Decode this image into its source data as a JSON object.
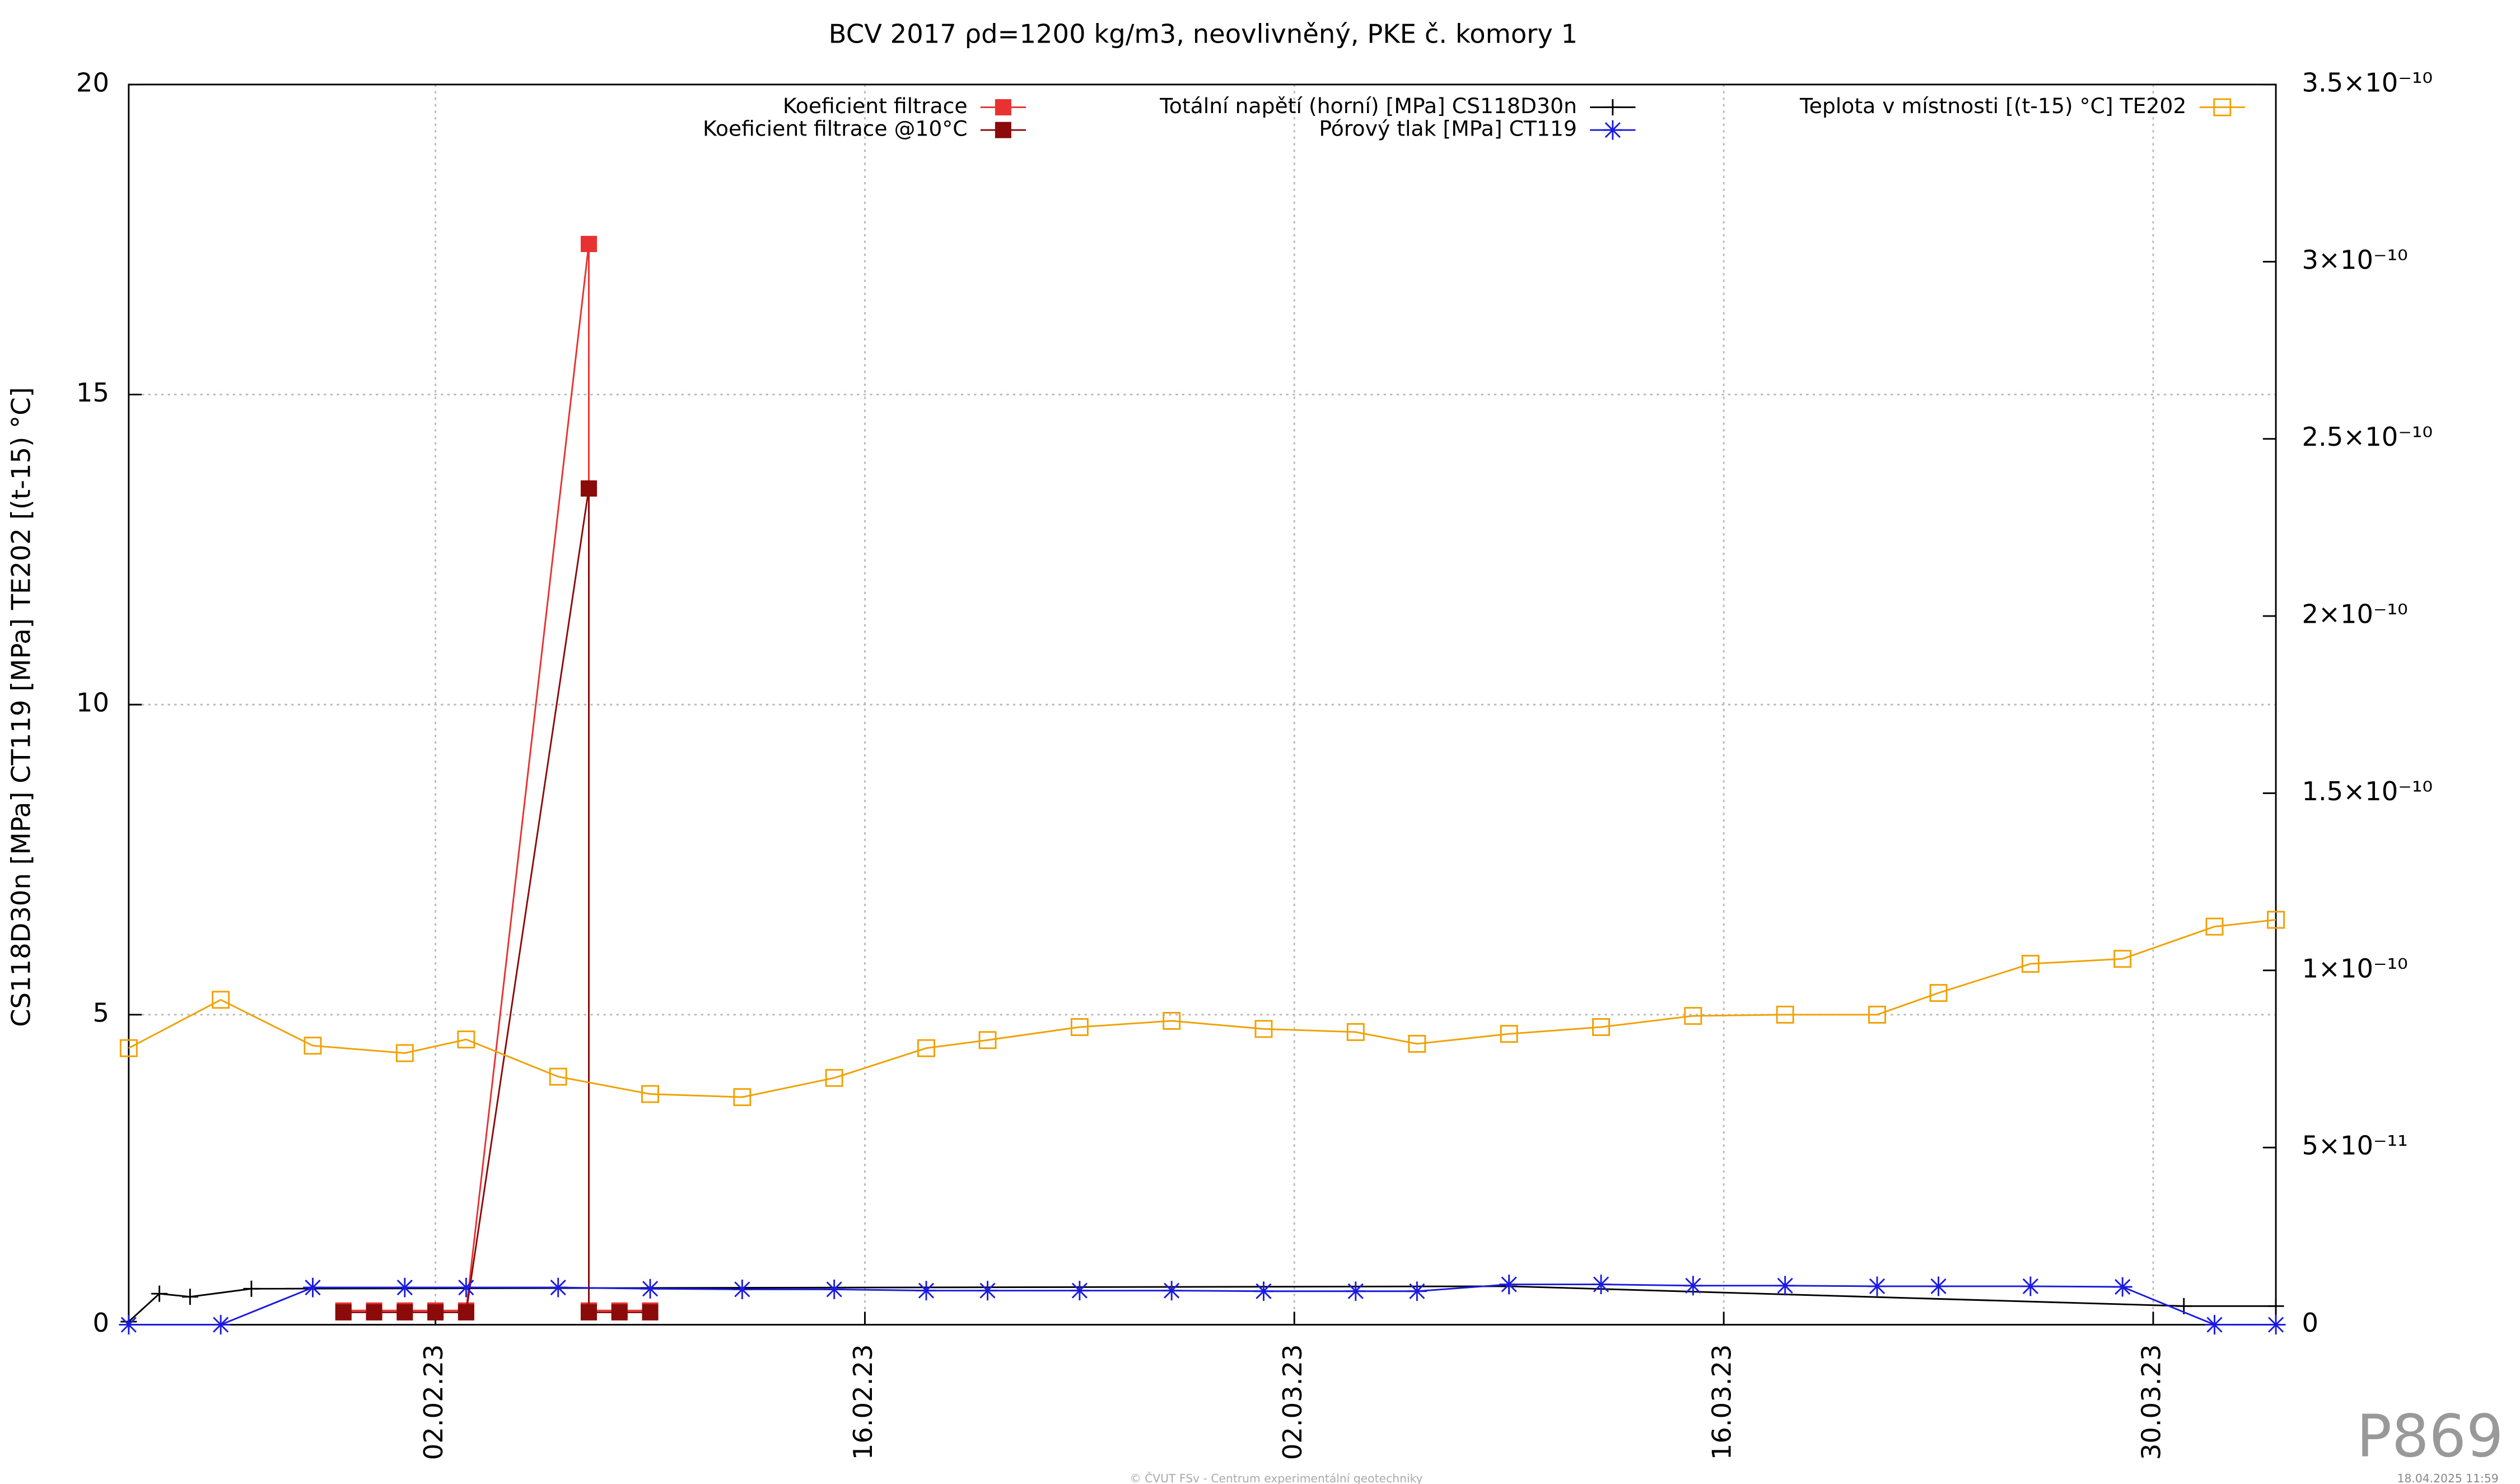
{
  "chart_data": {
    "type": "line",
    "title": "BCV 2017 ρd=1200 kg/m3, neovlivněný, PKE č. komory 1",
    "ylabel": "CS118D30n [MPa] CT119 [MPa] TE202 [(t-15) °C]",
    "xlim": [
      "2023-01-23",
      "2023-04-03"
    ],
    "xticks": [
      {
        "value": "2023-02-02",
        "label": "02.02.23"
      },
      {
        "value": "2023-02-16",
        "label": "16.02.23"
      },
      {
        "value": "2023-03-02",
        "label": "02.03.23"
      },
      {
        "value": "2023-03-16",
        "label": "16.03.23"
      },
      {
        "value": "2023-03-30",
        "label": "30.03.23"
      }
    ],
    "ylim": [
      0,
      20
    ],
    "yticks": [
      0,
      5,
      10,
      15,
      20
    ],
    "y2lim": [
      0,
      3.5e-10
    ],
    "y2ticks": [
      0,
      {
        "value": 5e-11,
        "label": "5×10⁻¹¹"
      },
      {
        "value": 1e-10,
        "label": "1×10⁻¹⁰"
      },
      {
        "value": 1.5e-10,
        "label": "1.5×10⁻¹⁰"
      },
      {
        "value": 2e-10,
        "label": "2×10⁻¹⁰"
      },
      {
        "value": 2.5e-10,
        "label": "2.5×10⁻¹⁰"
      },
      {
        "value": 3e-10,
        "label": "3×10⁻¹⁰"
      },
      {
        "value": 3.5e-10,
        "label": "3.5×10⁻¹⁰"
      }
    ],
    "grid": true,
    "series": [
      {
        "name": "Koeficient filtrace",
        "color": "#e83232",
        "axis": "y2",
        "marker": "filled-square",
        "x": [
          "2023-01-30",
          "2023-01-31",
          "2023-02-01",
          "2023-02-02",
          "2023-02-03",
          "2023-02-07",
          "2023-02-07",
          "2023-02-08",
          "2023-02-09"
        ],
        "values": [
          4e-12,
          4e-12,
          4e-12,
          4e-12,
          4e-12,
          3.05e-10,
          4e-12,
          4e-12,
          4e-12
        ]
      },
      {
        "name": "Koeficient filtrace @10°C",
        "color": "#8b0a0a",
        "axis": "y2",
        "marker": "filled-square",
        "x": [
          "2023-01-30",
          "2023-01-31",
          "2023-02-01",
          "2023-02-02",
          "2023-02-03",
          "2023-02-07",
          "2023-02-07",
          "2023-02-08",
          "2023-02-09"
        ],
        "values": [
          3.5e-12,
          3.5e-12,
          3.5e-12,
          3.5e-12,
          3.5e-12,
          2.36e-10,
          3.5e-12,
          3.5e-12,
          3.5e-12
        ]
      },
      {
        "name": "Totální napětí (horní) [MPa] CS118D30n",
        "color": "#000000",
        "marker": "plus",
        "x": [
          "2023-01-23",
          "2023-01-24",
          "2023-01-25",
          "2023-01-27",
          "2023-03-09",
          "2023-03-31",
          "2023-04-03"
        ],
        "values": [
          0.05,
          0.5,
          0.45,
          0.58,
          0.62,
          0.3,
          0.3
        ]
      },
      {
        "name": "Pórový tlak [MPa] CT119",
        "color": "#1a1ae0",
        "marker": "star",
        "x": [
          "2023-01-23",
          "2023-01-26",
          "2023-01-29",
          "2023-02-01",
          "2023-02-03",
          "2023-02-06",
          "2023-02-09",
          "2023-02-12",
          "2023-02-15",
          "2023-02-18",
          "2023-02-20",
          "2023-02-23",
          "2023-02-26",
          "2023-03-01",
          "2023-03-04",
          "2023-03-06",
          "2023-03-09",
          "2023-03-12",
          "2023-03-15",
          "2023-03-18",
          "2023-03-21",
          "2023-03-23",
          "2023-03-26",
          "2023-03-29",
          "2023-04-01",
          "2023-04-03"
        ],
        "values": [
          0,
          0,
          0.6,
          0.6,
          0.6,
          0.6,
          0.58,
          0.57,
          0.57,
          0.55,
          0.55,
          0.55,
          0.55,
          0.54,
          0.54,
          0.54,
          0.65,
          0.65,
          0.63,
          0.63,
          0.62,
          0.62,
          0.62,
          0.61,
          0,
          0
        ]
      },
      {
        "name": "Teplota v místnosti [(t-15) °C] TE202",
        "color": "#f0a000",
        "marker": "open-square",
        "x": [
          "2023-01-23",
          "2023-01-26",
          "2023-01-29",
          "2023-02-01",
          "2023-02-03",
          "2023-02-06",
          "2023-02-09",
          "2023-02-12",
          "2023-02-15",
          "2023-02-18",
          "2023-02-20",
          "2023-02-23",
          "2023-02-26",
          "2023-03-01",
          "2023-03-04",
          "2023-03-06",
          "2023-03-09",
          "2023-03-12",
          "2023-03-15",
          "2023-03-18",
          "2023-03-21",
          "2023-03-23",
          "2023-03-26",
          "2023-03-29",
          "2023-04-01",
          "2023-04-03"
        ],
        "values": [
          4.46,
          5.24,
          4.5,
          4.38,
          4.6,
          4.0,
          3.72,
          3.67,
          3.98,
          4.46,
          4.59,
          4.8,
          4.9,
          4.77,
          4.72,
          4.53,
          4.69,
          4.8,
          4.98,
          5.0,
          5.0,
          5.35,
          5.82,
          5.9,
          6.42,
          6.53
        ]
      }
    ],
    "footer": "© ČVUT FSv - Centrum experimentální geotechniky",
    "timestamp": "18.04.2025 11:59",
    "watermark": "P869"
  }
}
